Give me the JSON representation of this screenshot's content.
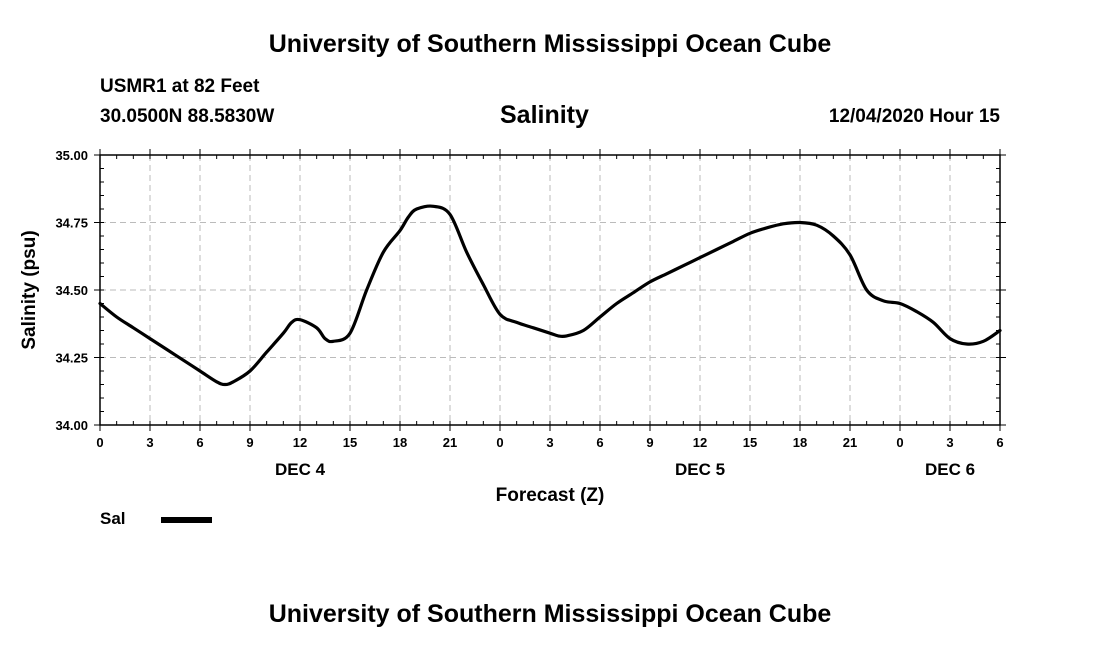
{
  "header": {
    "title": "University of Southern Mississippi Ocean Cube",
    "station": "USMR1 at 82 Feet",
    "coords": "30.0500N 88.5830W",
    "chart_title": "Salinity",
    "run_time": "12/04/2020 Hour 15"
  },
  "footer": {
    "title": "University of Southern Mississippi Ocean Cube"
  },
  "legend": {
    "label": "Sal",
    "color": "#000000"
  },
  "colors": {
    "line": "#000000",
    "grid": "#bbbbbb",
    "background": "#ffffff"
  },
  "chart_data": {
    "type": "line",
    "title": "Salinity",
    "xlabel": "Forecast (Z)",
    "ylabel": "Salinity (psu)",
    "xlim": [
      0,
      54
    ],
    "ylim": [
      34.0,
      35.0
    ],
    "x_ticks": [
      0,
      3,
      6,
      9,
      12,
      15,
      18,
      21,
      24,
      27,
      30,
      33,
      36,
      39,
      42,
      45,
      48,
      51,
      54
    ],
    "x_tick_labels": [
      "0",
      "3",
      "6",
      "9",
      "12",
      "15",
      "18",
      "21",
      "0",
      "3",
      "6",
      "9",
      "12",
      "15",
      "18",
      "21",
      "0",
      "3",
      "6"
    ],
    "y_ticks": [
      34.0,
      34.25,
      34.5,
      34.75,
      35.0
    ],
    "y_tick_labels": [
      "34.00",
      "34.25",
      "34.50",
      "34.75",
      "35.00"
    ],
    "day_labels": [
      {
        "x": 12,
        "label": "DEC 4"
      },
      {
        "x": 36,
        "label": "DEC 5"
      },
      {
        "x": 51,
        "label": "DEC 6"
      }
    ],
    "grid": true,
    "series": [
      {
        "name": "Sal",
        "x": [
          0,
          1,
          2,
          3,
          4,
          5,
          6,
          7,
          7.5,
          8,
          9,
          10,
          11,
          11.5,
          12,
          13,
          13.5,
          14,
          15,
          16,
          17,
          18,
          18.5,
          19,
          20,
          21,
          22,
          23,
          24,
          25,
          26,
          27,
          27.5,
          28,
          29,
          30,
          31,
          32,
          33,
          34,
          35,
          36,
          37,
          38,
          39,
          40,
          41,
          42,
          43,
          44,
          45,
          46,
          47,
          48,
          49,
          50,
          51,
          52,
          53,
          54
        ],
        "values": [
          34.45,
          34.4,
          34.36,
          34.32,
          34.28,
          34.24,
          34.2,
          34.16,
          34.15,
          34.16,
          34.2,
          34.27,
          34.34,
          34.38,
          34.39,
          34.36,
          34.32,
          34.31,
          34.34,
          34.5,
          34.64,
          34.72,
          34.77,
          34.8,
          34.81,
          34.78,
          34.64,
          34.52,
          34.41,
          34.38,
          34.36,
          34.34,
          34.33,
          34.33,
          34.35,
          34.4,
          34.45,
          34.49,
          34.53,
          34.56,
          34.59,
          34.62,
          34.65,
          34.68,
          34.71,
          34.73,
          34.745,
          34.75,
          34.74,
          34.7,
          34.63,
          34.5,
          34.46,
          34.45,
          34.42,
          34.38,
          34.32,
          34.3,
          34.31,
          34.35
        ]
      }
    ]
  }
}
